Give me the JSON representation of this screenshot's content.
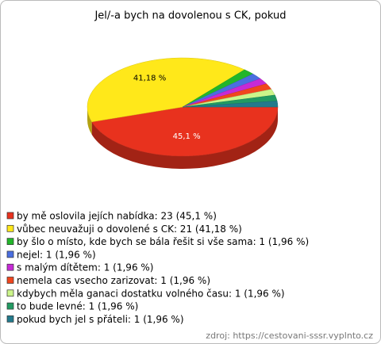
{
  "chart_data": {
    "type": "pie",
    "title": "Jel/-a bych na dovolenou s CK, pokud",
    "categories": [
      "by mě oslovila jejích nabídka: 23 (45,1 %)",
      "vůbec neuvažuji o dovolené s CK: 21 (41,18 %)",
      "by šlo o místo, kde bych se bála řešit si vše sama: 1 (1,96 %)",
      "nejel: 1 (1,96 %)",
      "s malým dítětem: 1 (1,96 %)",
      "nemela cas vsecho zarizovat: 1 (1,96 %)",
      "kdybych měla ganaci dostatku volného času: 1 (1,96 %)",
      "to bude levné: 1 (1,96 %)",
      "pokud bych jel s přáteli: 1 (1,96 %)"
    ],
    "values": [
      45.1,
      41.18,
      1.96,
      1.96,
      1.96,
      1.96,
      1.96,
      1.96,
      1.96
    ],
    "value_labels": [
      "45,1 %",
      "41,18 %",
      null,
      null,
      null,
      null,
      null,
      null,
      null
    ],
    "colors": [
      "#e8321e",
      "#ffe81a",
      "#22b62a",
      "#4a6ee0",
      "#c62ad6",
      "#f0461e",
      "#ccf58a",
      "#229a62",
      "#237a8c"
    ],
    "source": "zdroj: https://cestovani-sssr.vyplnto.cz"
  }
}
